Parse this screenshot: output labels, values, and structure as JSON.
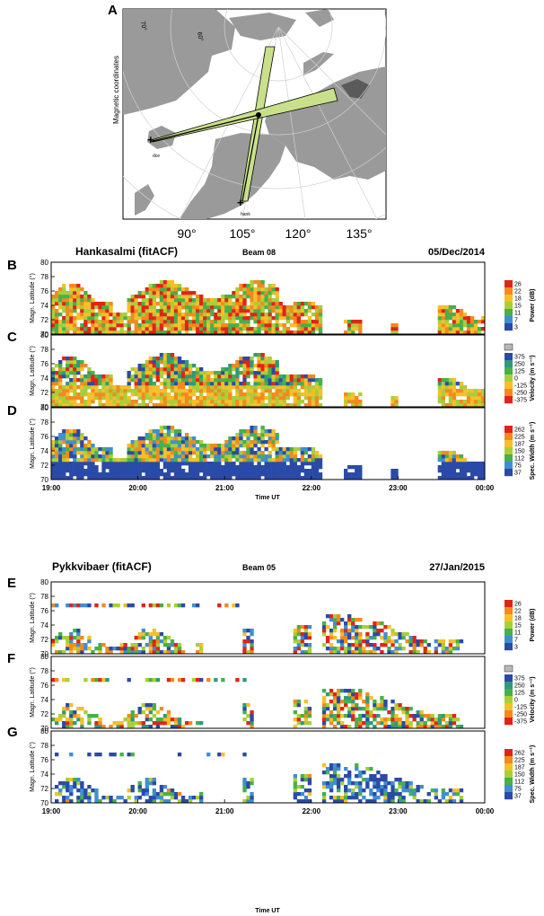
{
  "figure": {
    "panel_labels": [
      "A",
      "B",
      "C",
      "D",
      "E",
      "F",
      "G"
    ]
  },
  "map": {
    "side_title": "Magnetic coordinates",
    "lat_labels": [
      "70°",
      "60°"
    ],
    "lon_labels": [
      "90°",
      "105°",
      "120°",
      "135°"
    ],
    "radar_labels": [
      "dce",
      "hank"
    ],
    "colors": {
      "land": "#9a9a9a",
      "dark_land": "#5a5a5a",
      "beam": "#c8e08a",
      "water": "#ffffff"
    }
  },
  "radar1": {
    "title": "Hankasalmi (fitACF)",
    "beam": "Beam 08",
    "date": "05/Dec/2014",
    "time_ticks": [
      "19:00",
      "20:00",
      "21:00",
      "22:00",
      "23:00",
      "00:00"
    ],
    "time_label": "Time UT"
  },
  "radar2": {
    "title": "Pykkvibaer (fitACF)",
    "beam": "Beam 05",
    "date": "27/Jan/2015",
    "time_ticks": [
      "19:00",
      "20:00",
      "21:00",
      "22:00",
      "23:00",
      "00:00"
    ],
    "time_label": "Time UT"
  },
  "axes": {
    "ylabel": "Magn. Latitude (°)",
    "y_ticks": [
      "70",
      "72",
      "74",
      "76",
      "78",
      "80"
    ],
    "ylim": [
      70,
      80
    ]
  },
  "colorbars": {
    "power": {
      "label": "Power (dB)",
      "ticks": [
        "26",
        "22",
        "18",
        "15",
        "11",
        "7",
        "3"
      ]
    },
    "velocity": {
      "label": "Velocity (m s⁻¹)",
      "ticks": [
        "375",
        "250",
        "125",
        "0",
        "-125",
        "-250",
        "-375"
      ]
    },
    "width": {
      "label": "Spec. Width (m s⁻¹)",
      "ticks": [
        "262",
        "225",
        "187",
        "150",
        "112",
        "75",
        "37"
      ]
    }
  },
  "palettes": {
    "power": [
      "#2a4aa8",
      "#3f8fd0",
      "#47b04a",
      "#a8cf3a",
      "#f5c02a",
      "#f28a1f",
      "#e02418"
    ],
    "velocity": [
      "#e02418",
      "#f28a1f",
      "#f5c02a",
      "#a8cf3a",
      "#47b04a",
      "#2f9a7a",
      "#2a4aa8"
    ],
    "width": [
      "#2a4aa8",
      "#3f8fd0",
      "#47b04a",
      "#a8cf3a",
      "#f5c02a",
      "#f28a1f",
      "#e02418"
    ],
    "gray": "#b8b8b8"
  }
}
